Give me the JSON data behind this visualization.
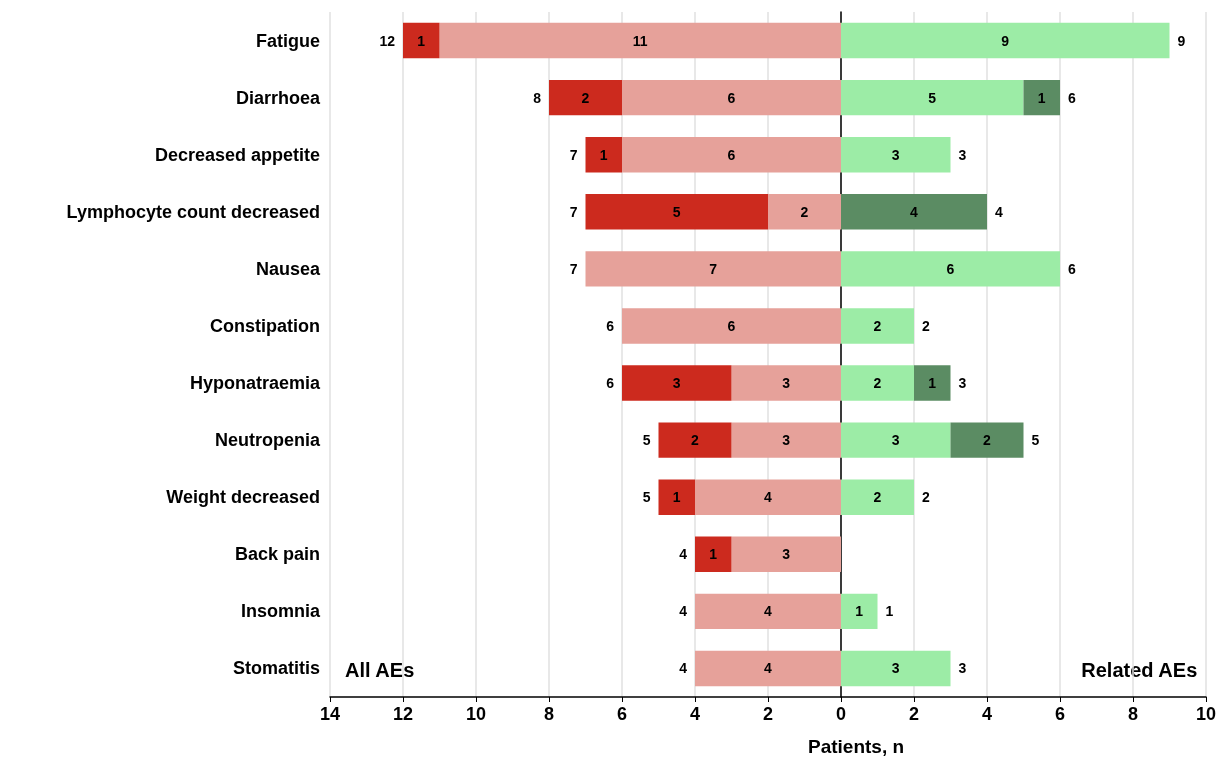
{
  "chart_data": {
    "type": "bar",
    "orientation": "horizontal",
    "xlabel": "Patients, n",
    "categories": [
      "Fatigue",
      "Diarrhoea",
      "Decreased appetite",
      "Lymphocyte count decreased",
      "Nausea",
      "Constipation",
      "Hyponatraemia",
      "Neutropenia",
      "Weight decreased",
      "Back pain",
      "Insomnia",
      "Stomatitis"
    ],
    "series": [
      {
        "color": "#e6a19a",
        "values": [
          11,
          6,
          6,
          2,
          7,
          6,
          3,
          3,
          4,
          3,
          4,
          4
        ],
        "base": [
          -11,
          -6,
          -6,
          -2,
          -7,
          -6,
          -3,
          -3,
          -4,
          -3,
          -4,
          -4
        ]
      },
      {
        "color": "#cc2a1e",
        "values": [
          1,
          2,
          1,
          5,
          null,
          null,
          3,
          2,
          1,
          1,
          null,
          null
        ],
        "base": [
          -12,
          -8,
          -7,
          -7,
          null,
          null,
          -6,
          -5,
          -5,
          -4,
          null,
          null
        ]
      },
      {
        "color": "#9ceca6",
        "values": [
          9,
          5,
          3,
          null,
          6,
          2,
          2,
          3,
          2,
          null,
          1,
          3
        ],
        "base": [
          0,
          0,
          0,
          null,
          0,
          0,
          0,
          0,
          0,
          null,
          0,
          0
        ]
      },
      {
        "color": "#5b8c63",
        "values": [
          null,
          1,
          null,
          4,
          null,
          null,
          1,
          2,
          null,
          null,
          null,
          null
        ],
        "base": [
          null,
          5,
          null,
          0,
          null,
          null,
          2,
          3,
          null,
          null,
          null,
          null
        ]
      }
    ],
    "data_labels": true,
    "totals": [
      [
        "12",
        "8",
        "7",
        "7",
        "7",
        "6",
        "6",
        "5",
        "5",
        "4",
        "4",
        "4"
      ],
      [
        "9",
        "6",
        "3",
        "4",
        "6",
        "2",
        "3",
        "5",
        "2",
        null,
        "1",
        "3"
      ]
    ],
    "xlim": [
      -14,
      10
    ],
    "xticks": [
      {
        "value": -14,
        "label": "14"
      },
      {
        "value": -12,
        "label": "12"
      },
      {
        "value": -10,
        "label": "10"
      },
      {
        "value": -8,
        "label": "8"
      },
      {
        "value": -6,
        "label": "6"
      },
      {
        "value": -4,
        "label": "4"
      },
      {
        "value": -2,
        "label": "2"
      },
      0,
      2,
      4,
      6,
      8,
      10
    ],
    "grid": "x",
    "annotations": [
      "All AEs",
      "Related AEs"
    ]
  }
}
